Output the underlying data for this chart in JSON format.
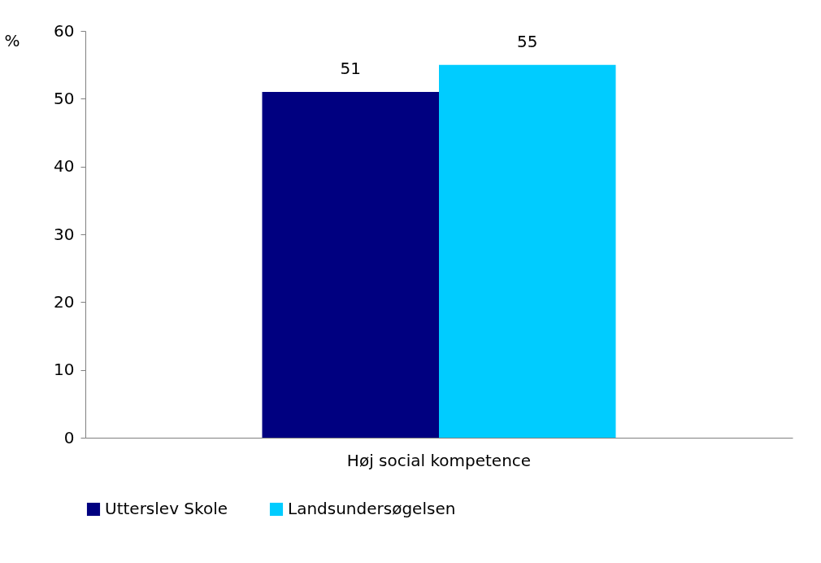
{
  "chart_data": {
    "type": "bar",
    "ylabel": "%",
    "categories": [
      "Høj social kompetence"
    ],
    "series": [
      {
        "name": "Utterslev Skole",
        "color": "#000080",
        "values": [
          51
        ]
      },
      {
        "name": "Landsundersøgelsen",
        "color": "#00ccff",
        "values": [
          55
        ]
      }
    ],
    "ylim": [
      0,
      60
    ],
    "yticks": [
      0,
      10,
      20,
      30,
      40,
      50,
      60
    ],
    "grid": false,
    "legend": "bottom",
    "data_labels": true
  }
}
